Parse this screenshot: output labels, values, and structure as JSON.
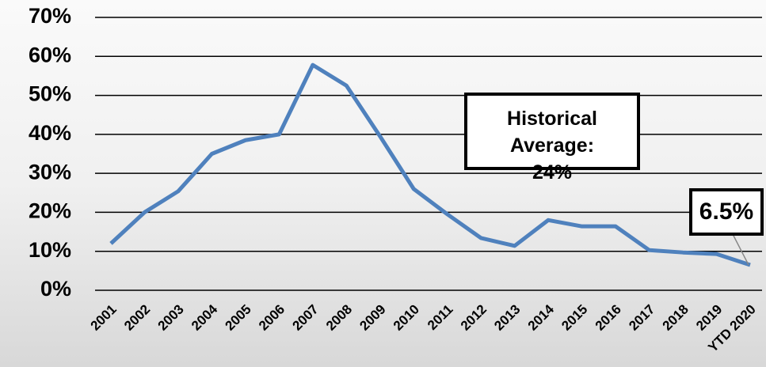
{
  "chart_data": {
    "type": "line",
    "categories": [
      "2001",
      "2002",
      "2003",
      "2004",
      "2005",
      "2006",
      "2007",
      "2008",
      "2009",
      "2010",
      "2011",
      "2012",
      "2013",
      "2014",
      "2015",
      "2016",
      "2017",
      "2018",
      "2019",
      "YTD 2020"
    ],
    "series": [
      {
        "color": "#4f81bd",
        "values": [
          12,
          20,
          25.4,
          35,
          38.5,
          40,
          57.8,
          52.5,
          39.5,
          26,
          19.5,
          13.4,
          11.4,
          18,
          16.4,
          16.4,
          10.3,
          9.7,
          9.3,
          6.5
        ]
      }
    ],
    "value_labels": [
      null,
      null,
      null,
      null,
      null,
      null,
      null,
      null,
      null,
      null,
      null,
      null,
      null,
      null,
      null,
      null,
      null,
      null,
      null,
      "6.5%"
    ],
    "annotations": [
      "Historical Average: 24%"
    ],
    "ylim": [
      0,
      70
    ],
    "yticks": [
      {
        "value": 0,
        "label": "0%"
      },
      {
        "value": 10,
        "label": "10%"
      },
      {
        "value": 20,
        "label": "20%"
      },
      {
        "value": 30,
        "label": "30%"
      },
      {
        "value": 40,
        "label": "40%"
      },
      {
        "value": 50,
        "label": "50%"
      },
      {
        "value": 60,
        "label": "60%"
      },
      {
        "value": 70,
        "label": "70%"
      }
    ],
    "grid": true
  }
}
